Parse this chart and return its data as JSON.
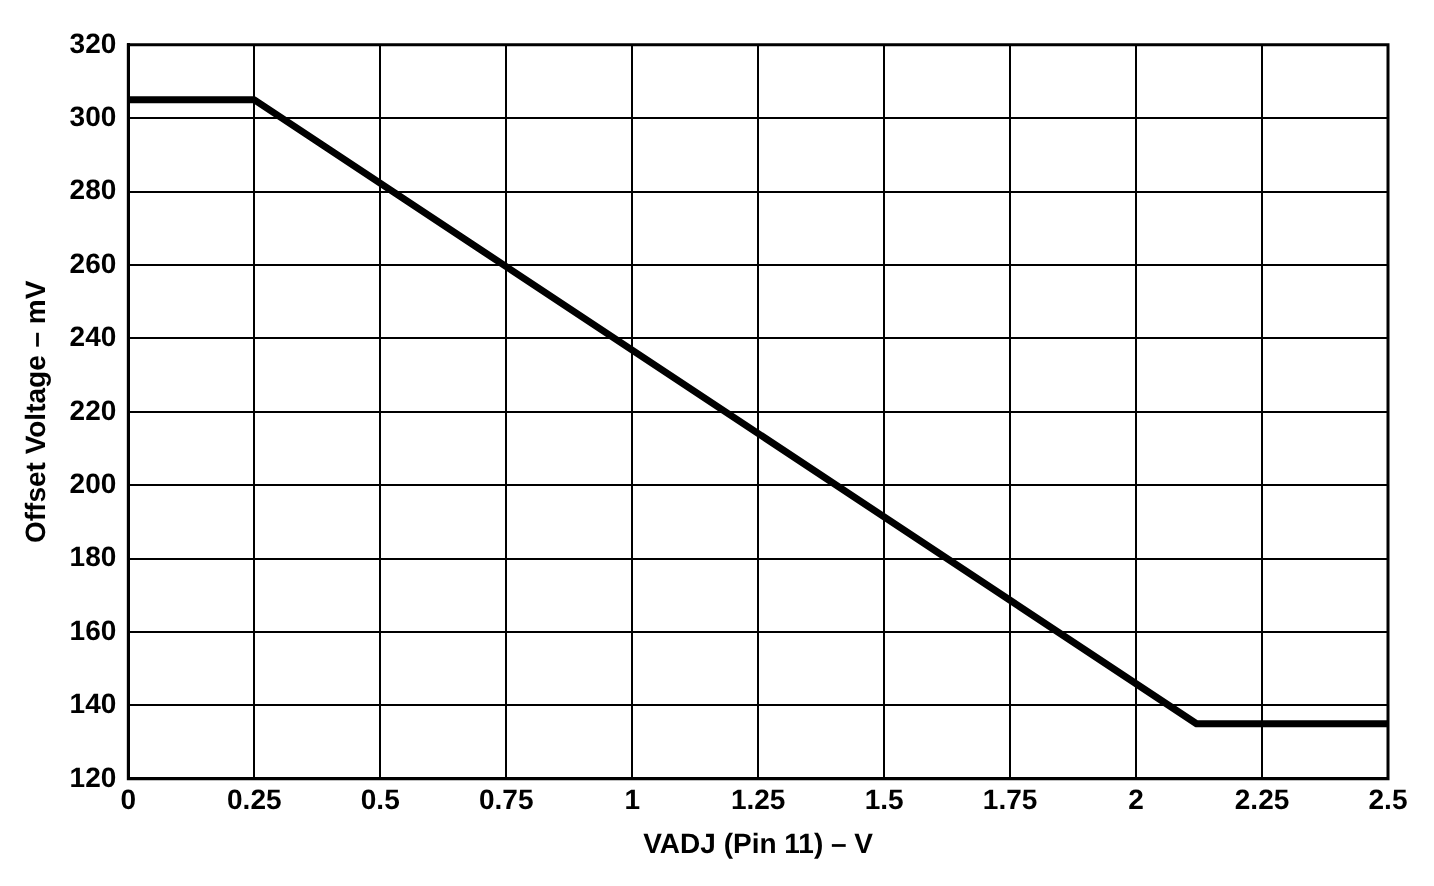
{
  "chart_data": {
    "type": "line",
    "xlabel": "VADJ (Pin 11) – V",
    "ylabel": "Offset Voltage – mV",
    "series": [
      {
        "x": [
          0,
          0.25,
          2.12,
          2.5
        ],
        "values": [
          305,
          305,
          135,
          135
        ],
        "color": "#000000"
      }
    ],
    "xlim": [
      0,
      2.5
    ],
    "xticks": [
      0,
      0.25,
      0.5,
      0.75,
      1,
      1.25,
      1.5,
      1.75,
      2,
      2.25,
      2.5
    ],
    "ylim": [
      120,
      320
    ],
    "yticks": [
      120,
      140,
      160,
      180,
      200,
      220,
      240,
      260,
      280,
      300,
      320
    ],
    "grid": true,
    "legend": false,
    "marker": "none",
    "line_style": "solid"
  }
}
